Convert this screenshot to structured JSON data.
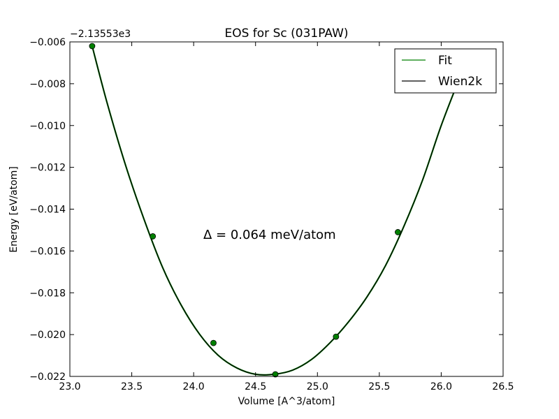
{
  "chart_data": {
    "type": "line",
    "title": "EOS for Sc (031PAW)",
    "xlabel": "Volume [A^3/atom]",
    "ylabel": "Energy [eV/atom]",
    "offset_text": "−2.13553e3",
    "xlim": [
      23.0,
      26.5
    ],
    "ylim": [
      -0.022,
      -0.006
    ],
    "xticks": [
      23.0,
      23.5,
      24.0,
      24.5,
      25.0,
      25.5,
      26.0,
      26.5
    ],
    "xtick_labels": [
      "23.0",
      "23.5",
      "24.0",
      "24.5",
      "25.0",
      "25.5",
      "26.0",
      "26.5"
    ],
    "yticks": [
      -0.022,
      -0.02,
      -0.018,
      -0.016,
      -0.014,
      -0.012,
      -0.01,
      -0.008,
      -0.006
    ],
    "ytick_labels": [
      "−0.022",
      "−0.020",
      "−0.018",
      "−0.016",
      "−0.014",
      "−0.012",
      "−0.010",
      "−0.008",
      "−0.006"
    ],
    "grid": false,
    "legend_position": "top-right",
    "annotation": "Δ = 0.064 meV/atom",
    "series": [
      {
        "name": "Fit",
        "kind": "curve",
        "color": "#008000",
        "x": [
          23.18,
          23.3,
          23.45,
          23.6,
          23.75,
          23.9,
          24.05,
          24.2,
          24.35,
          24.5,
          24.65,
          24.8,
          24.95,
          25.1,
          25.25,
          25.4,
          25.55,
          25.7,
          25.85,
          26.0,
          26.15
        ],
        "y": [
          -0.0062,
          -0.0089,
          -0.0119,
          -0.0145,
          -0.0168,
          -0.0186,
          -0.02,
          -0.021,
          -0.0216,
          -0.0219,
          -0.0219,
          -0.0217,
          -0.0212,
          -0.0204,
          -0.0194,
          -0.0182,
          -0.0167,
          -0.0148,
          -0.0126,
          -0.01,
          -0.0077
        ]
      },
      {
        "name": "Wien2k",
        "kind": "curve",
        "color": "#000000",
        "x": [
          23.18,
          23.3,
          23.45,
          23.6,
          23.75,
          23.9,
          24.05,
          24.2,
          24.35,
          24.5,
          24.65,
          24.8,
          24.95,
          25.1,
          25.25,
          25.4,
          25.55,
          25.7,
          25.85,
          26.0,
          26.15
        ],
        "y": [
          -0.0062,
          -0.0089,
          -0.0119,
          -0.0145,
          -0.0168,
          -0.0186,
          -0.02,
          -0.021,
          -0.0216,
          -0.0219,
          -0.0219,
          -0.0217,
          -0.0212,
          -0.0204,
          -0.0194,
          -0.0182,
          -0.0167,
          -0.0148,
          -0.0126,
          -0.01,
          -0.0077
        ]
      },
      {
        "kind": "points",
        "color": "#008000",
        "x": [
          23.18,
          23.67,
          24.16,
          24.66,
          25.15,
          25.65
        ],
        "y": [
          -0.0062,
          -0.0153,
          -0.0204,
          -0.0219,
          -0.0201,
          -0.0151
        ]
      }
    ]
  }
}
